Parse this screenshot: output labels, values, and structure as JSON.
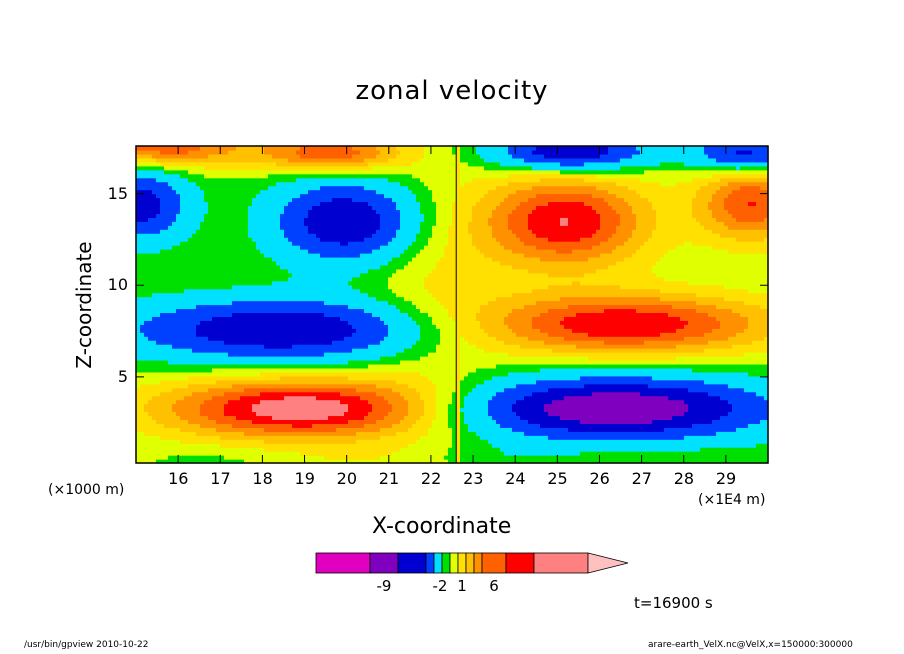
{
  "chart_data": {
    "type": "heatmap",
    "title": "zonal velocity",
    "xlabel": "X-coordinate",
    "ylabel": "Z-coordinate",
    "x_unit_left": "(×1000 m)",
    "x_unit_right": "(×1E4 m)",
    "x_ticks": [
      "16",
      "17",
      "18",
      "19",
      "20",
      "21",
      "22",
      "23",
      "24",
      "25",
      "26",
      "27",
      "28",
      "29"
    ],
    "x_tick_values": [
      16,
      17,
      18,
      19,
      20,
      21,
      22,
      23,
      24,
      25,
      26,
      27,
      28,
      29
    ],
    "y_ticks": [
      "5",
      "10",
      "15"
    ],
    "y_tick_values": [
      5,
      10,
      15
    ],
    "xlim": [
      15,
      30
    ],
    "ylim": [
      0.3,
      17.6
    ],
    "colorbar_labels": [
      "-9",
      "-2",
      "1",
      "6"
    ],
    "colorbar_label_levels": [
      -9,
      -2,
      1,
      6
    ],
    "colorbar_colors": [
      "#e000c0",
      "#8000c0",
      "#0000d0",
      "#0040ff",
      "#00e0ff",
      "#00e000",
      "#e0ff00",
      "#ffe000",
      "#ffc000",
      "#ff9000",
      "#ff6000",
      "#ff0000",
      "#ff8080"
    ],
    "colorbar_extend_color": "#ffc0c0",
    "time_label": "t=16900 s",
    "footer_left": "/usr/bin/gpview  2010-10-22",
    "footer_right": "arare-earth_VelX.nc@VelX,x=150000:300000"
  }
}
